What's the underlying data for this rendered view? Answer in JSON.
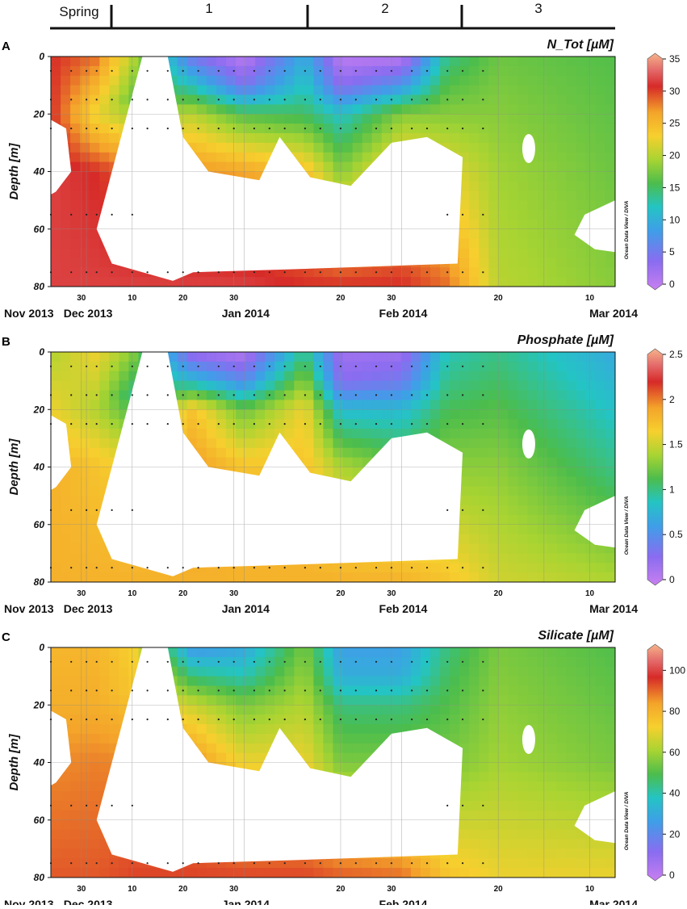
{
  "seasons": {
    "labels": [
      "Spring",
      "1",
      "2",
      "3"
    ],
    "dividers": [
      "2013-12-07",
      "2014-01-13",
      "2014-02-11"
    ]
  },
  "chart_data": [
    {
      "type": "heatmap",
      "panel": "A",
      "title": "N_Tot [µM]",
      "ylabel": "Depth [m]",
      "xlabel": "",
      "xlim": [
        "2013-11-24",
        "2014-03-15"
      ],
      "ylim": [
        80,
        0
      ],
      "y_ticks": [
        0,
        20,
        40,
        60,
        80
      ],
      "x_minor_ticks": [
        "30",
        "10",
        "20",
        "30",
        "20",
        "30",
        "20",
        "10"
      ],
      "x_major_ticks": [
        "Nov 2013",
        "Dec 2013",
        "Jan 2014",
        "Feb 2014",
        "Mar 2014"
      ],
      "grid": true,
      "colorbar": {
        "min": 0,
        "max": 35,
        "ticks": [
          0,
          5,
          10,
          15,
          20,
          25,
          30,
          35
        ],
        "palette": "odv"
      },
      "credit": "Ocean Data View / DIVA",
      "colors": {
        "surface_early": "#a070e0",
        "mid": "#5cc05c",
        "deep": "#f2b088",
        "feb_mar": "#d8312a"
      },
      "profiles": [
        {
          "date": "2013-11-24",
          "depth": [
            0,
            20,
            40,
            80
          ],
          "value": [
            30,
            30,
            31,
            31
          ]
        },
        {
          "date": "2013-12-03",
          "depth": [
            0,
            20,
            40,
            80
          ],
          "value": [
            28,
            22,
            30,
            31
          ]
        },
        {
          "date": "2013-12-10",
          "depth": [
            0,
            15,
            40,
            80
          ],
          "value": [
            20,
            17,
            28,
            31
          ]
        },
        {
          "date": "2013-12-22",
          "depth": [
            0,
            10,
            20,
            40,
            80
          ],
          "value": [
            5,
            12,
            20,
            27,
            31
          ]
        },
        {
          "date": "2014-01-01",
          "depth": [
            0,
            10,
            20,
            40,
            80
          ],
          "value": [
            1,
            5,
            16,
            26,
            31
          ]
        },
        {
          "date": "2014-01-13",
          "depth": [
            0,
            20,
            40,
            80
          ],
          "value": [
            10,
            15,
            24,
            30
          ]
        },
        {
          "date": "2014-01-20",
          "depth": [
            0,
            10,
            20,
            40,
            80
          ],
          "value": [
            1,
            4,
            12,
            18,
            30
          ]
        },
        {
          "date": "2014-02-01",
          "depth": [
            0,
            10,
            20,
            40,
            80
          ],
          "value": [
            1,
            8,
            18,
            24,
            30
          ]
        },
        {
          "date": "2014-02-10",
          "depth": [
            0,
            20,
            40,
            80
          ],
          "value": [
            14,
            18,
            22,
            28
          ]
        },
        {
          "date": "2014-02-20",
          "depth": [
            0,
            40,
            80
          ],
          "value": [
            17,
            19,
            20
          ]
        },
        {
          "date": "2014-03-15",
          "depth": [
            0,
            40,
            80
          ],
          "value": [
            16,
            17,
            18
          ]
        }
      ]
    },
    {
      "type": "heatmap",
      "panel": "B",
      "title": "Phosphate [µM]",
      "ylabel": "Depth [m]",
      "xlabel": "",
      "xlim": [
        "2013-11-24",
        "2014-03-15"
      ],
      "ylim": [
        80,
        0
      ],
      "y_ticks": [
        0,
        20,
        40,
        60,
        80
      ],
      "x_minor_ticks": [
        "30",
        "10",
        "20",
        "30",
        "20",
        "30",
        "20",
        "10"
      ],
      "x_major_ticks": [
        "Nov 2013",
        "Dec 2013",
        "Jan 2014",
        "Feb 2014",
        "Mar 2014"
      ],
      "grid": true,
      "colorbar": {
        "min": 0,
        "max": 2.5,
        "ticks": [
          0,
          0.5,
          1,
          1.5,
          2,
          2.5
        ],
        "palette": "odv"
      },
      "credit": "Ocean Data View / DIVA",
      "colors": {
        "surface_early": "#a070e0",
        "mid": "#5cc05c",
        "deep": "#d8312a",
        "feb_mar": "#f4c22c"
      },
      "profiles": [
        {
          "date": "2013-11-24",
          "depth": [
            0,
            20,
            40,
            80
          ],
          "value": [
            1.4,
            1.6,
            1.8,
            1.8
          ]
        },
        {
          "date": "2013-12-03",
          "depth": [
            0,
            20,
            40,
            80
          ],
          "value": [
            1.6,
            1.4,
            1.7,
            1.8
          ]
        },
        {
          "date": "2013-12-10",
          "depth": [
            0,
            15,
            40,
            80
          ],
          "value": [
            1.3,
            1.0,
            1.6,
            1.8
          ]
        },
        {
          "date": "2013-12-22",
          "depth": [
            0,
            10,
            20,
            40,
            80
          ],
          "value": [
            0.2,
            0.8,
            1.7,
            1.9,
            1.8
          ]
        },
        {
          "date": "2014-01-01",
          "depth": [
            0,
            10,
            20,
            40,
            80
          ],
          "value": [
            0.1,
            0.5,
            1.2,
            1.7,
            1.8
          ]
        },
        {
          "date": "2014-01-13",
          "depth": [
            0,
            20,
            40,
            80
          ],
          "value": [
            1.0,
            1.6,
            1.7,
            1.8
          ]
        },
        {
          "date": "2014-01-20",
          "depth": [
            0,
            10,
            20,
            40,
            80
          ],
          "value": [
            0.2,
            0.3,
            0.8,
            1.4,
            1.8
          ]
        },
        {
          "date": "2014-02-01",
          "depth": [
            0,
            10,
            20,
            40,
            80
          ],
          "value": [
            0.2,
            0.4,
            0.8,
            1.2,
            1.8
          ]
        },
        {
          "date": "2014-02-10",
          "depth": [
            0,
            20,
            40,
            80
          ],
          "value": [
            0.9,
            1.1,
            1.3,
            1.7
          ]
        },
        {
          "date": "2014-02-20",
          "depth": [
            0,
            40,
            80
          ],
          "value": [
            1.0,
            1.3,
            1.5
          ]
        },
        {
          "date": "2014-03-15",
          "depth": [
            0,
            40,
            80
          ],
          "value": [
            0.7,
            1.0,
            1.4
          ]
        }
      ]
    },
    {
      "type": "heatmap",
      "panel": "C",
      "title": "Silicate [µM]",
      "ylabel": "Depth [m]",
      "xlabel": "",
      "xlim": [
        "2013-11-24",
        "2014-03-15"
      ],
      "ylim": [
        80,
        0
      ],
      "y_ticks": [
        0,
        20,
        40,
        60,
        80
      ],
      "x_minor_ticks": [
        "30",
        "10",
        "20",
        "30",
        "20",
        "30",
        "20",
        "10"
      ],
      "x_major_ticks": [
        "Nov 2013",
        "Dec 2013",
        "Jan 2014",
        "Feb 2014",
        "Mar 2014"
      ],
      "grid": true,
      "colorbar": {
        "min": 0,
        "max": 110,
        "ticks": [
          0,
          20,
          40,
          60,
          80,
          100
        ],
        "palette": "odv"
      },
      "credit": "Ocean Data View / DIVA",
      "colors": {
        "surface_early": "#a070e0",
        "mid": "#5cc05c",
        "deep": "#f4a82c",
        "feb_mar": "#54c080"
      },
      "profiles": [
        {
          "date": "2013-11-24",
          "depth": [
            0,
            20,
            40,
            80
          ],
          "value": [
            78,
            80,
            85,
            90
          ]
        },
        {
          "date": "2013-12-03",
          "depth": [
            0,
            20,
            40,
            80
          ],
          "value": [
            78,
            80,
            86,
            90
          ]
        },
        {
          "date": "2013-12-10",
          "depth": [
            0,
            15,
            40,
            80
          ],
          "value": [
            72,
            74,
            85,
            92
          ]
        },
        {
          "date": "2013-12-22",
          "depth": [
            0,
            10,
            20,
            40,
            80
          ],
          "value": [
            25,
            45,
            65,
            85,
            92
          ]
        },
        {
          "date": "2014-01-01",
          "depth": [
            0,
            10,
            20,
            40,
            80
          ],
          "value": [
            30,
            40,
            55,
            70,
            92
          ]
        },
        {
          "date": "2014-01-13",
          "depth": [
            0,
            20,
            40,
            80
          ],
          "value": [
            55,
            62,
            70,
            92
          ]
        },
        {
          "date": "2014-01-20",
          "depth": [
            0,
            10,
            20,
            40,
            80
          ],
          "value": [
            28,
            32,
            45,
            55,
            90
          ]
        },
        {
          "date": "2014-02-01",
          "depth": [
            0,
            10,
            20,
            40,
            80
          ],
          "value": [
            28,
            32,
            45,
            55,
            88
          ]
        },
        {
          "date": "2014-02-10",
          "depth": [
            0,
            20,
            40,
            80
          ],
          "value": [
            45,
            50,
            55,
            75
          ]
        },
        {
          "date": "2014-02-20",
          "depth": [
            0,
            40,
            80
          ],
          "value": [
            55,
            60,
            70
          ]
        },
        {
          "date": "2014-03-15",
          "depth": [
            0,
            40,
            80
          ],
          "value": [
            50,
            55,
            70
          ]
        }
      ]
    }
  ]
}
